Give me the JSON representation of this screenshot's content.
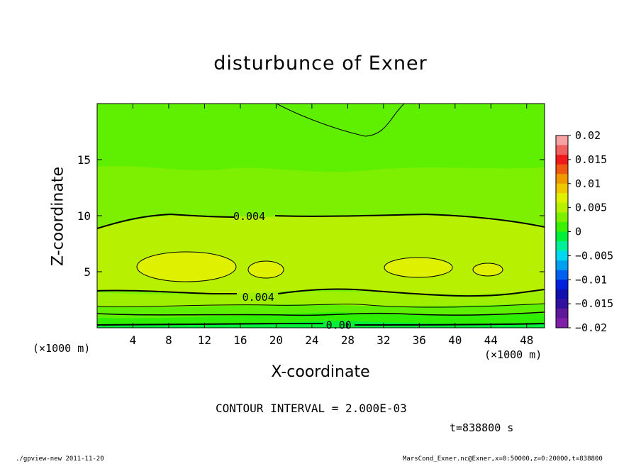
{
  "chart_data": {
    "type": "heatmap",
    "title": "disturbunce of Exner",
    "xlabel": "X-coordinate",
    "ylabel": "Z-coordinate",
    "xlim": [
      0,
      50
    ],
    "ylim": [
      0,
      20
    ],
    "x_unit": "(×1000 m)",
    "x_ticks": [
      4,
      8,
      12,
      16,
      20,
      24,
      28,
      32,
      36,
      40,
      44,
      48
    ],
    "y_ticks": [
      5,
      10,
      15
    ],
    "contour_interval": "CONTOUR INTERVAL = 2.000E-03",
    "contour_labels": [
      {
        "text": "0.004",
        "x": 17,
        "z": 10
      },
      {
        "text": "0.004",
        "x": 18,
        "z": 2.8
      },
      {
        "text": "0.00",
        "x": 27,
        "z": 0.3
      }
    ],
    "colorbar": {
      "levels": [
        0.02,
        0.015,
        0.01,
        0.005,
        0,
        -0.005,
        -0.01,
        -0.015,
        -0.02
      ],
      "labels": [
        "0.02",
        "0.015",
        "0.01",
        "0.005",
        "0",
        "−0.005",
        "−0.01",
        "−0.015",
        "−0.02"
      ],
      "colors": [
        "#f7a3a3",
        "#f06060",
        "#f01a1a",
        "#f05a10",
        "#f09a00",
        "#f0c800",
        "#dff000",
        "#b7f000",
        "#7cf000",
        "#3cf000",
        "#00f03a",
        "#00f09a",
        "#00d8f0",
        "#00a0f0",
        "#0060f0",
        "#0020e0",
        "#1010b0",
        "#3010a0",
        "#60189a",
        "#8020a8"
      ]
    },
    "fields": {
      "background_color": "#7cf000",
      "upper_band_color": "#5ef000",
      "mid_band_color": "#b7f000",
      "core_color": "#dff000",
      "bottom_band_colors": [
        "#9ef000",
        "#5ef000",
        "#2ef000",
        "#00f03a"
      ]
    }
  },
  "time_label": "t=838800 s",
  "footer_left": "./gpview-new   2011-11-20",
  "footer_right": "MarsCond_Exner.nc@Exner,x=0:50000,z=0:20000,t=838800"
}
